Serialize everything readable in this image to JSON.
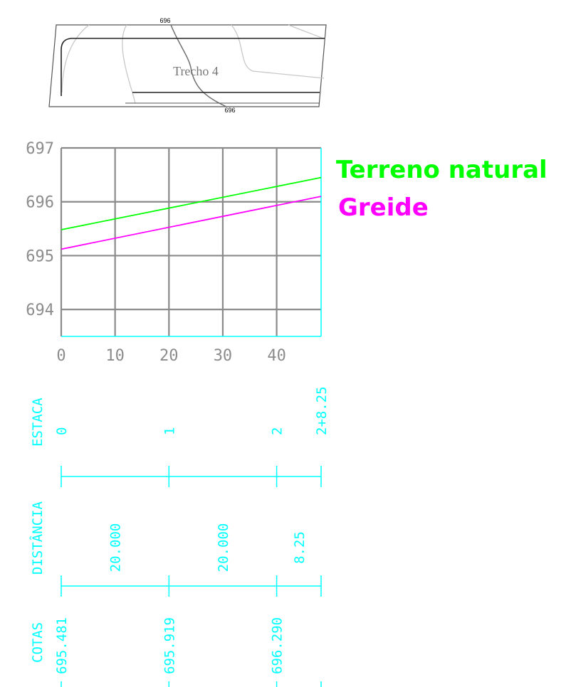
{
  "plan": {
    "trecho_label": "Trecho 4",
    "contour_label_top": "696",
    "contour_label_bottom": "696"
  },
  "chart_data": {
    "type": "line",
    "x": [
      0,
      48.25
    ],
    "series": [
      {
        "name": "Terreno natural",
        "color": "#00ff00",
        "y": [
          695.481,
          696.45
        ]
      },
      {
        "name": "Greide",
        "color": "#ff00ff",
        "y": [
          695.12,
          696.1
        ]
      }
    ],
    "xticks": [
      0,
      10,
      20,
      30,
      40
    ],
    "yticks": [
      694,
      695,
      696,
      697
    ],
    "xlim": [
      0,
      48.25
    ],
    "ylim": [
      693.5,
      697
    ],
    "grid": true,
    "legend": "right"
  },
  "table": {
    "row_labels": {
      "estaca": "ESTACA",
      "distancia": "DISTÂNCIA",
      "cotas": "COTAS"
    },
    "estacas": [
      {
        "x": 0,
        "label": "0"
      },
      {
        "x": 20,
        "label": "1"
      },
      {
        "x": 40,
        "label": "2"
      },
      {
        "x": 48.25,
        "label": "2+8.25"
      }
    ],
    "distancias": [
      {
        "from": 0,
        "to": 20,
        "label": "20.000"
      },
      {
        "from": 20,
        "to": 40,
        "label": "20.000"
      },
      {
        "from": 40,
        "to": 48.25,
        "label": "8.25"
      }
    ],
    "cotas": [
      {
        "x": 0,
        "label": "695.481"
      },
      {
        "x": 20,
        "label": "695.919"
      },
      {
        "x": 40,
        "label": "696.290"
      }
    ]
  },
  "colors": {
    "terreno": "#00ff00",
    "greide": "#ff00ff",
    "table": "#00ffff",
    "grid": "#8a8a8a"
  }
}
